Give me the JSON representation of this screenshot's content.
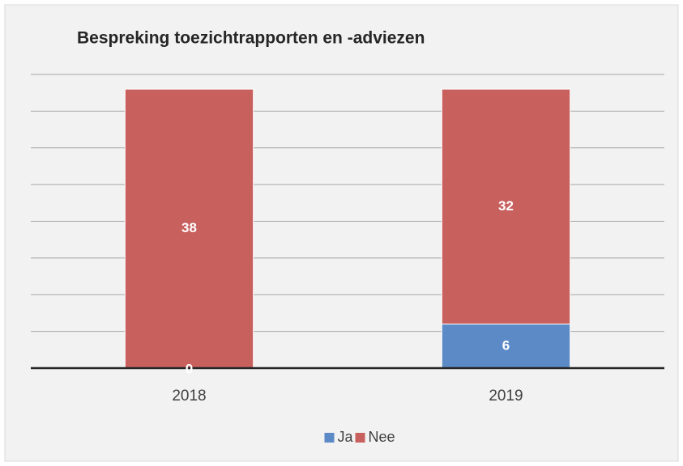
{
  "chart_data": {
    "type": "stacked_bar",
    "title": "Bespreking toezichtrapporten en -adviezen",
    "categories": [
      "2018",
      "2019"
    ],
    "series": [
      {
        "name": "Ja",
        "color": "#5b8ac6",
        "values": [
          0,
          6
        ]
      },
      {
        "name": "Nee",
        "color": "#c8605e",
        "values": [
          38,
          32
        ]
      }
    ],
    "ylim": [
      0,
      40
    ],
    "yticks": [
      0,
      5,
      10,
      15,
      20,
      25,
      30,
      35,
      40
    ],
    "grid": true,
    "legend": "bottom"
  }
}
